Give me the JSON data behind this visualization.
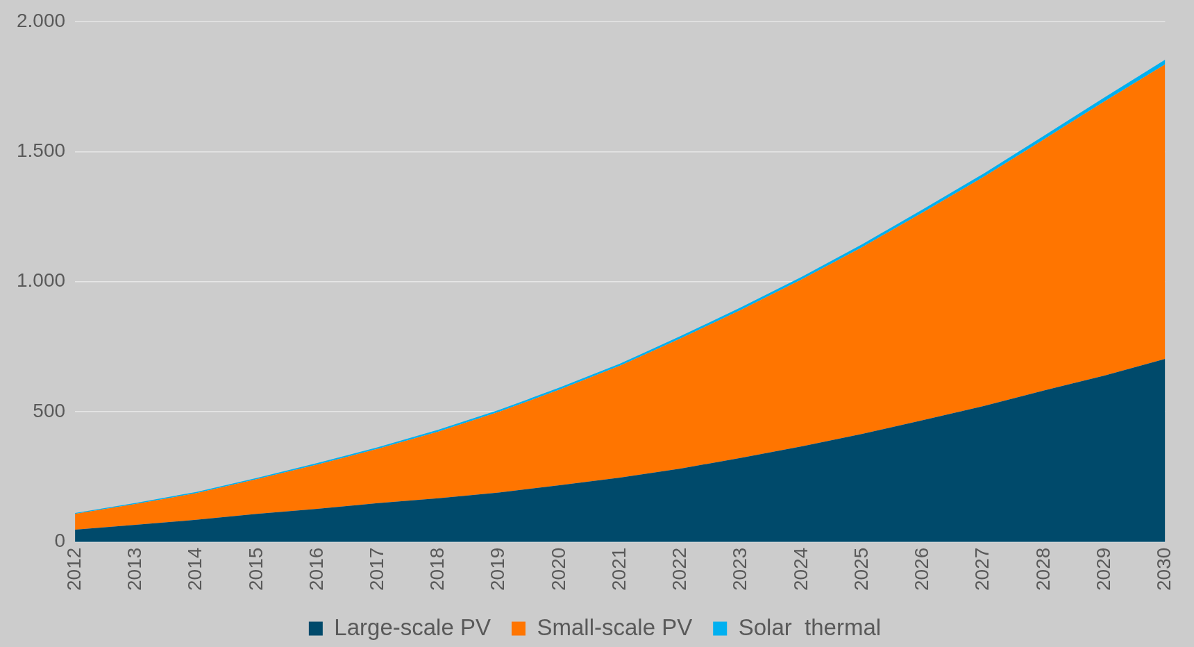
{
  "chart_data": {
    "type": "area",
    "stacked": true,
    "categories": [
      "2012",
      "2013",
      "2014",
      "2015",
      "2016",
      "2017",
      "2018",
      "2019",
      "2020",
      "2021",
      "2022",
      "2023",
      "2024",
      "2025",
      "2026",
      "2027",
      "2028",
      "2029",
      "2030"
    ],
    "series": [
      {
        "name": "Large-scale PV",
        "color": "#004a6b",
        "values": [
          47,
          66,
          85,
          108,
          127,
          149,
          168,
          190,
          218,
          247,
          282,
          323,
          367,
          415,
          468,
          522,
          582,
          639,
          703
        ]
      },
      {
        "name": "Small-scale PV",
        "color": "#ff7500",
        "values": [
          61,
          80,
          102,
          133,
          170,
          209,
          256,
          310,
          367,
          430,
          500,
          569,
          642,
          718,
          798,
          880,
          965,
          1054,
          1132
        ]
      },
      {
        "name": "Solar  thermal",
        "color": "#00b0f0",
        "values": [
          3,
          4,
          5,
          5,
          6,
          6,
          7,
          7,
          8,
          8,
          9,
          10,
          10,
          11,
          12,
          13,
          14,
          15,
          18
        ]
      }
    ],
    "ylim": [
      0,
      2000
    ],
    "yticks": [
      0,
      {
        "value": 500,
        "label": "500"
      },
      {
        "value": 1000,
        "label": "1.000"
      },
      {
        "value": 1500,
        "label": "1.500"
      },
      {
        "value": 2000,
        "label": "2.000"
      }
    ],
    "grid": "y",
    "legend": "bottom"
  }
}
